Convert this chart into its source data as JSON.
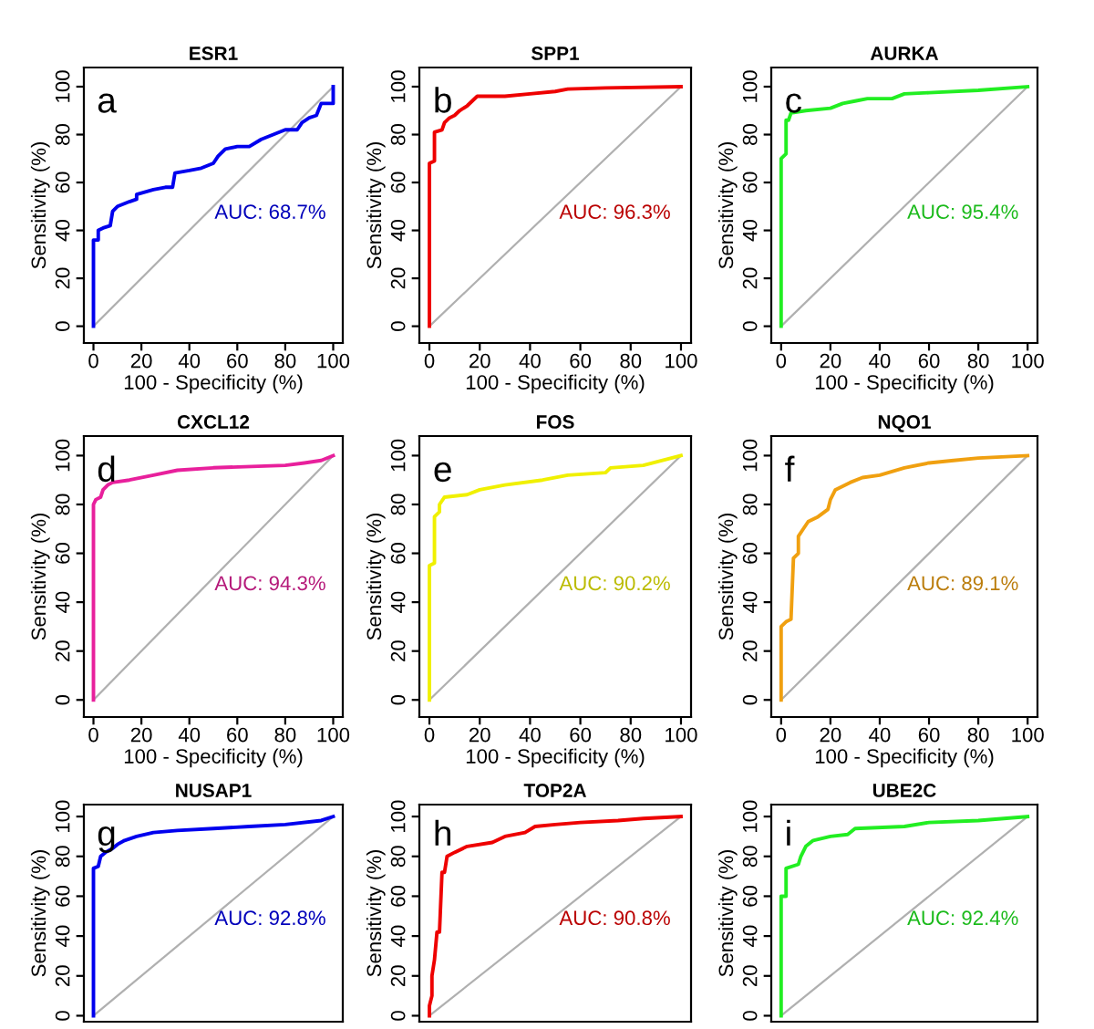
{
  "chart_data": [
    {
      "type": "line",
      "title": "ESR1",
      "xlabel": "100 - Specificity (%)",
      "ylabel": "Sensitivity (%)",
      "xlim": [
        -4,
        104
      ],
      "ylim": [
        -7,
        108
      ],
      "xticks": [
        0,
        20,
        40,
        60,
        80,
        100
      ],
      "yticks": [
        0,
        20,
        40,
        60,
        80,
        100
      ],
      "annotations": [
        "a",
        "AUC: 68.7%"
      ],
      "series": [
        {
          "color": "#0000ee",
          "x": [
            0,
            0,
            2,
            2,
            4,
            7,
            8,
            10,
            15,
            18,
            18,
            25,
            30,
            33,
            34,
            40,
            45,
            50,
            52,
            55,
            60,
            65,
            70,
            75,
            80,
            85,
            87,
            90,
            93,
            95,
            100,
            100
          ],
          "values": [
            0,
            36,
            36,
            40,
            41,
            42,
            48,
            50,
            52,
            53,
            55,
            57,
            58,
            58,
            64,
            65,
            66,
            68,
            71,
            74,
            75,
            75,
            78,
            80,
            82,
            82,
            85,
            87,
            88,
            93,
            93,
            100
          ]
        },
        {
          "color": "#b0b0b0",
          "x": [
            0,
            100
          ],
          "values": [
            0,
            100
          ]
        }
      ]
    },
    {
      "type": "line",
      "title": "SPP1",
      "xlabel": "100 - Specificity (%)",
      "ylabel": "Sensitivity (%)",
      "xlim": [
        -4,
        104
      ],
      "ylim": [
        -7,
        108
      ],
      "xticks": [
        0,
        20,
        40,
        60,
        80,
        100
      ],
      "yticks": [
        0,
        20,
        40,
        60,
        80,
        100
      ],
      "annotations": [
        "b",
        "AUC: 96.3%"
      ],
      "series": [
        {
          "color": "#ee0000",
          "x": [
            0,
            0,
            2,
            2,
            5,
            6,
            8,
            10,
            12,
            15,
            17,
            19,
            30,
            40,
            50,
            55,
            70,
            100
          ],
          "values": [
            0,
            68,
            69,
            81,
            82,
            85,
            87,
            88,
            90,
            92,
            94,
            96,
            96,
            97,
            98,
            99,
            99.5,
            100
          ]
        },
        {
          "color": "#b0b0b0",
          "x": [
            0,
            100
          ],
          "values": [
            0,
            100
          ]
        }
      ]
    },
    {
      "type": "line",
      "title": "AURKA",
      "xlabel": "100 - Specificity (%)",
      "ylabel": "Sensitivity (%)",
      "xlim": [
        -4,
        104
      ],
      "ylim": [
        -7,
        108
      ],
      "xticks": [
        0,
        20,
        40,
        60,
        80,
        100
      ],
      "yticks": [
        0,
        20,
        40,
        60,
        80,
        100
      ],
      "annotations": [
        "c",
        "AUC: 95.4%"
      ],
      "series": [
        {
          "color": "#22ee22",
          "x": [
            0,
            0,
            2,
            2,
            3,
            4,
            10,
            20,
            25,
            30,
            35,
            45,
            50,
            60,
            80,
            100
          ],
          "values": [
            0,
            70,
            72,
            86,
            86,
            89,
            90,
            91,
            93,
            94,
            95,
            95,
            97,
            97.5,
            98.5,
            100
          ]
        },
        {
          "color": "#b0b0b0",
          "x": [
            0,
            100
          ],
          "values": [
            0,
            100
          ]
        }
      ]
    },
    {
      "type": "line",
      "title": "CXCL12",
      "xlabel": "100 - Specificity (%)",
      "ylabel": "Sensitivity (%)",
      "xlim": [
        -4,
        104
      ],
      "ylim": [
        -7,
        108
      ],
      "xticks": [
        0,
        20,
        40,
        60,
        80,
        100
      ],
      "yticks": [
        0,
        20,
        40,
        60,
        80,
        100
      ],
      "annotations": [
        "d",
        "AUC: 94.3%"
      ],
      "series": [
        {
          "color": "#e8209c",
          "x": [
            0,
            0,
            1,
            3,
            4,
            6,
            8,
            15,
            25,
            35,
            50,
            80,
            88,
            95,
            100
          ],
          "values": [
            0,
            80,
            82,
            83,
            86,
            88,
            89,
            90,
            92,
            94,
            95,
            96,
            97,
            98,
            100
          ]
        },
        {
          "color": "#b0b0b0",
          "x": [
            0,
            100
          ],
          "values": [
            0,
            100
          ]
        }
      ]
    },
    {
      "type": "line",
      "title": "FOS",
      "xlabel": "100 - Specificity (%)",
      "ylabel": "Sensitivity (%)",
      "xlim": [
        -4,
        104
      ],
      "ylim": [
        -7,
        108
      ],
      "xticks": [
        0,
        20,
        40,
        60,
        80,
        100
      ],
      "yticks": [
        0,
        20,
        40,
        60,
        80,
        100
      ],
      "annotations": [
        "e",
        "AUC: 90.2%"
      ],
      "series": [
        {
          "color": "#f0f000",
          "x": [
            0,
            0,
            2,
            2,
            4,
            4,
            6,
            15,
            20,
            30,
            45,
            55,
            70,
            72,
            85,
            100
          ],
          "values": [
            0,
            55,
            56,
            75,
            77,
            80,
            83,
            84,
            86,
            88,
            90,
            92,
            93,
            95,
            96,
            100
          ]
        },
        {
          "color": "#b0b0b0",
          "x": [
            0,
            100
          ],
          "values": [
            0,
            100
          ]
        }
      ]
    },
    {
      "type": "line",
      "title": "NQO1",
      "xlabel": "100 - Specificity (%)",
      "ylabel": "Sensitivity (%)",
      "xlim": [
        -4,
        104
      ],
      "ylim": [
        -7,
        108
      ],
      "xticks": [
        0,
        20,
        40,
        60,
        80,
        100
      ],
      "yticks": [
        0,
        20,
        40,
        60,
        80,
        100
      ],
      "annotations": [
        "f",
        "AUC: 89.1%"
      ],
      "series": [
        {
          "color": "#f0a010",
          "x": [
            0,
            0,
            2,
            4,
            5,
            7,
            7,
            9,
            11,
            15,
            19,
            20,
            22,
            28,
            33,
            40,
            50,
            60,
            70,
            80,
            100
          ],
          "values": [
            0,
            30,
            32,
            33,
            58,
            60,
            67,
            70,
            73,
            75,
            78,
            82,
            86,
            89,
            91,
            92,
            95,
            97,
            98,
            99,
            100
          ]
        },
        {
          "color": "#b0b0b0",
          "x": [
            0,
            100
          ],
          "values": [
            0,
            100
          ]
        }
      ]
    },
    {
      "type": "line",
      "title": "NUSAP1",
      "ylabel": "Sensitivity (%)",
      "xlim": [
        -4,
        104
      ],
      "ylim": [
        -3,
        106
      ],
      "yticks": [
        0,
        20,
        40,
        60,
        80,
        100
      ],
      "tick_labels": "y",
      "annotations": [
        "g",
        "AUC: 92.8%"
      ],
      "series": [
        {
          "color": "#0000ee",
          "x": [
            0,
            0,
            2,
            3,
            5,
            8,
            10,
            13,
            18,
            25,
            35,
            50,
            65,
            80,
            95,
            100
          ],
          "values": [
            0,
            74,
            75,
            80,
            82,
            84,
            86,
            88,
            90,
            92,
            93,
            94,
            95,
            96,
            98,
            100
          ]
        },
        {
          "color": "#b0b0b0",
          "x": [
            0,
            100
          ],
          "values": [
            0,
            100
          ]
        }
      ]
    },
    {
      "type": "line",
      "title": "TOP2A",
      "ylabel": "Sensitivity (%)",
      "xlim": [
        -4,
        104
      ],
      "ylim": [
        -3,
        106
      ],
      "yticks": [
        0,
        20,
        40,
        60,
        80,
        100
      ],
      "tick_labels": "y",
      "annotations": [
        "h",
        "AUC: 90.8%"
      ],
      "series": [
        {
          "color": "#ee0000",
          "x": [
            0,
            0,
            1,
            1,
            2,
            3,
            4,
            5,
            6,
            7,
            10,
            15,
            25,
            30,
            38,
            42,
            50,
            60,
            75,
            85,
            100
          ],
          "values": [
            0,
            5,
            10,
            20,
            28,
            42,
            42,
            72,
            72,
            80,
            82,
            85,
            87,
            90,
            92,
            95,
            96,
            97,
            98,
            99,
            100
          ]
        },
        {
          "color": "#b0b0b0",
          "x": [
            0,
            100
          ],
          "values": [
            0,
            100
          ]
        }
      ]
    },
    {
      "type": "line",
      "title": "UBE2C",
      "ylabel": "Sensitivity (%)",
      "xlim": [
        -4,
        104
      ],
      "ylim": [
        -3,
        106
      ],
      "yticks": [
        0,
        20,
        40,
        60,
        80,
        100
      ],
      "tick_labels": "y",
      "annotations": [
        "i",
        "AUC: 92.4%"
      ],
      "series": [
        {
          "color": "#22ee22",
          "x": [
            0,
            0,
            2,
            2,
            7,
            8,
            10,
            13,
            20,
            27,
            30,
            50,
            60,
            80,
            100
          ],
          "values": [
            0,
            60,
            60,
            74,
            76,
            80,
            85,
            88,
            90,
            91,
            94,
            95,
            97,
            98,
            100
          ]
        },
        {
          "color": "#b0b0b0",
          "x": [
            0,
            100
          ],
          "values": [
            0,
            100
          ]
        }
      ]
    }
  ]
}
